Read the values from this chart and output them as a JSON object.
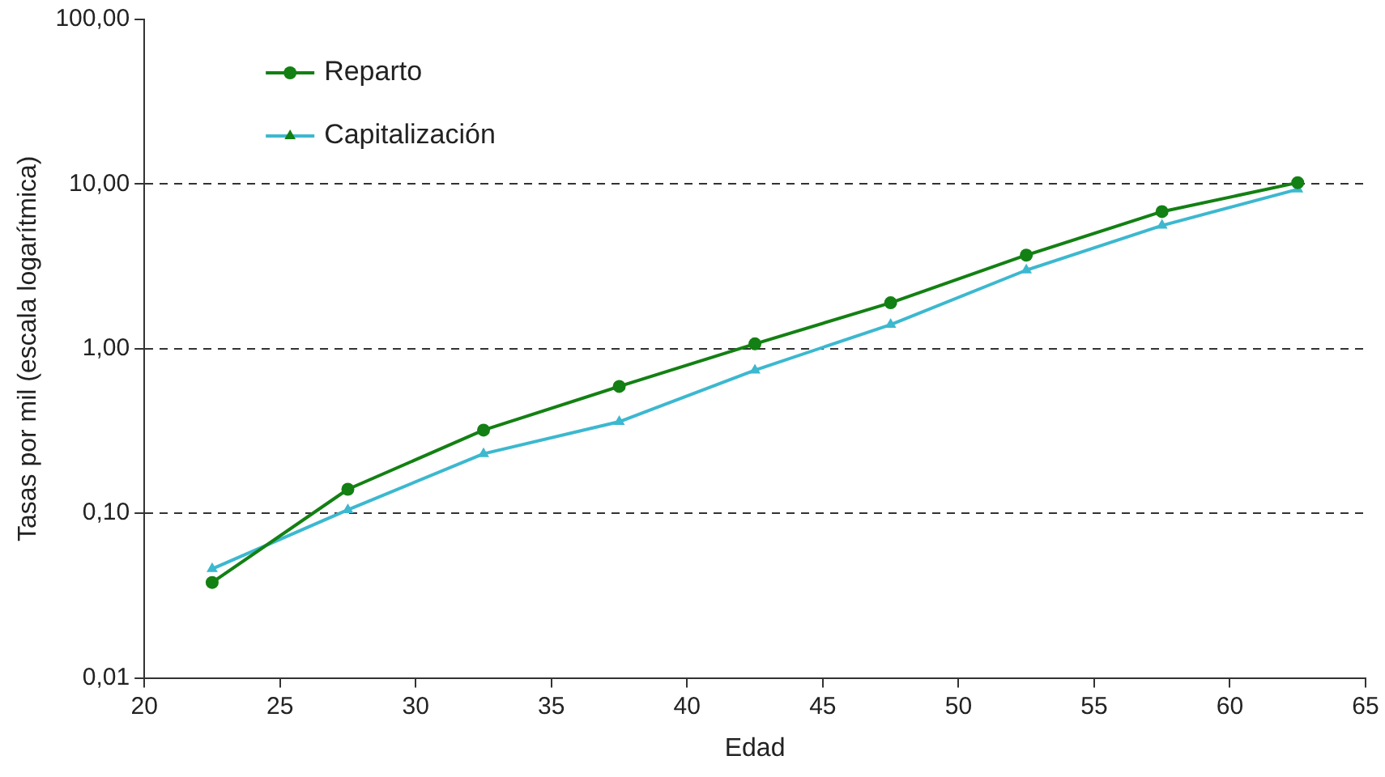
{
  "chart_data": {
    "type": "line",
    "xlabel": "Edad",
    "ylabel": "Tasas por mil (escala logarítmica)",
    "x": [
      22.5,
      27.5,
      32.5,
      37.5,
      42.5,
      47.5,
      52.5,
      57.5,
      62.5
    ],
    "series": [
      {
        "name": "Reparto",
        "color": "#138013",
        "marker": "circle",
        "values": [
          0.038,
          0.14,
          0.32,
          0.59,
          1.07,
          1.9,
          3.7,
          6.8,
          10.2
        ]
      },
      {
        "name": "Capitalización",
        "color": "#3cb8cf",
        "marker": "triangle",
        "values": [
          0.046,
          0.105,
          0.23,
          0.36,
          0.74,
          1.4,
          3.0,
          5.6,
          9.3
        ]
      }
    ],
    "log": "y",
    "xlim": [
      20,
      65
    ],
    "xticks": [
      20,
      25,
      30,
      35,
      40,
      45,
      50,
      55,
      60,
      65
    ],
    "ylim": [
      0.01,
      100
    ],
    "yticks": [
      {
        "value": 0.01,
        "label": "0,01"
      },
      {
        "value": 0.1,
        "label": "0,10"
      },
      {
        "value": 1,
        "label": "1,00"
      },
      {
        "value": 10,
        "label": "10,00"
      },
      {
        "value": 100,
        "label": "100,00"
      }
    ],
    "grid": "y",
    "line_style": "solid",
    "legend": "top left"
  }
}
